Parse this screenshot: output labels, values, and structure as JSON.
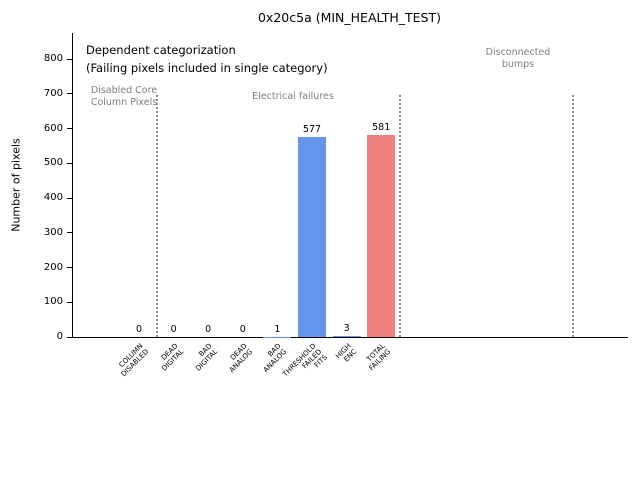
{
  "title": "0x20c5a (MIN_HEALTH_TEST)",
  "ylabel": "Number of pixels",
  "annotations": {
    "dependent_line1": "Dependent categorization",
    "dependent_line2": "(Failing pixels included in single category)",
    "disabled_core": "Disabled Core\nColumn Pixels",
    "electrical": "Electrical failures",
    "disconnected": "Disconnected\nbumps"
  },
  "chart_data": {
    "type": "bar",
    "title": "0x20c5a (MIN_HEALTH_TEST)",
    "xlabel": "",
    "ylabel": "Number of pixels",
    "categories": [
      "COLUMN\nDISABLED",
      "DEAD\nDIGITAL",
      "BAD\nDIGITAL",
      "DEAD\nANALOG",
      "BAD\nANALOG",
      "THRESHOLD\nFAILED\nFITS",
      "HIGH\nENC",
      "TOTAL\nFAILING"
    ],
    "values": [
      0,
      0,
      0,
      0,
      1,
      577,
      3,
      581
    ],
    "colors": [
      "#6495ed",
      "#6495ed",
      "#6495ed",
      "#6495ed",
      "#6495ed",
      "#6495ed",
      "#6495ed",
      "#f08080"
    ],
    "ylim": [
      0,
      875
    ],
    "yticks": [
      0,
      100,
      200,
      300,
      400,
      500,
      600,
      700,
      800
    ],
    "grid": false,
    "legend": "none",
    "group_separators_slot": [
      0.5,
      7.5,
      12.5
    ],
    "separator_color": "#8c8c8c",
    "annotation_color": "#7f7f7f"
  }
}
